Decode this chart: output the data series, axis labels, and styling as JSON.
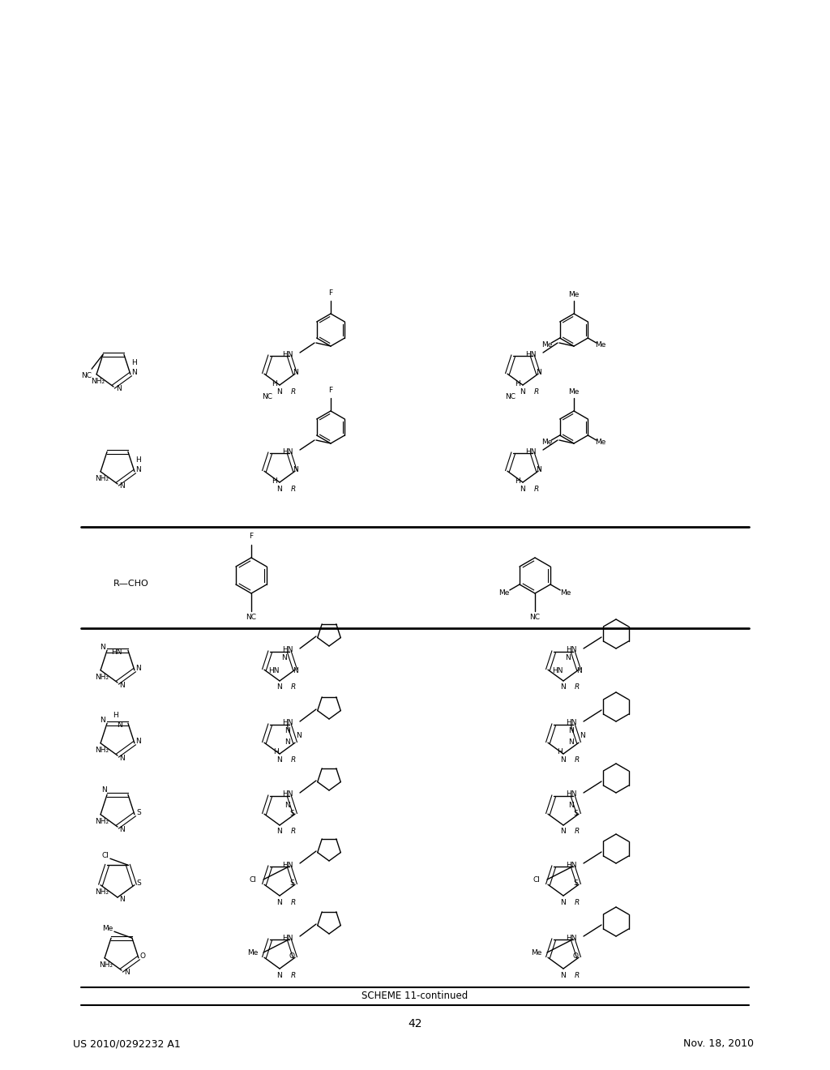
{
  "page_number": "42",
  "patent_number": "US 2010/0292232 A1",
  "patent_date": "Nov. 18, 2010",
  "scheme_title": "SCHEME 11-continued",
  "background_color": "#ffffff",
  "text_color": "#000000",
  "line_color": "#000000",
  "title_fontsize": 9,
  "body_fontsize": 7.5,
  "small_fontsize": 6.5,
  "header_fontsize": 9,
  "page_num_fontsize": 10
}
